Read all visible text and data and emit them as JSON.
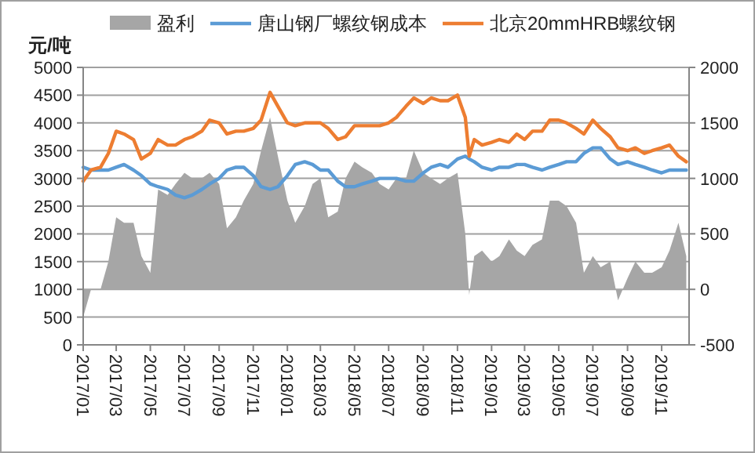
{
  "chart_data": {
    "type": "line",
    "ylabel": "元/吨",
    "legend": "top",
    "grid": "y",
    "xlim": [
      "2017-01-01",
      "2019-12-20"
    ],
    "xticks": [
      {
        "value": "2017-01",
        "label": "2017/01"
      },
      {
        "value": "2017-03",
        "label": "2017/03"
      },
      {
        "value": "2017-05",
        "label": "2017/05"
      },
      {
        "value": "2017-07",
        "label": "2017/07"
      },
      {
        "value": "2017-09",
        "label": "2017/09"
      },
      {
        "value": "2017-11",
        "label": "2017/11"
      },
      {
        "value": "2018-01",
        "label": "2018/01"
      },
      {
        "value": "2018-03",
        "label": "2018/03"
      },
      {
        "value": "2018-05",
        "label": "2018/05"
      },
      {
        "value": "2018-07",
        "label": "2018/07"
      },
      {
        "value": "2018-09",
        "label": "2018/09"
      },
      {
        "value": "2018-11",
        "label": "2018/11"
      },
      {
        "value": "2019-01",
        "label": "2019/01"
      },
      {
        "value": "2019-03",
        "label": "2019/03"
      },
      {
        "value": "2019-05",
        "label": "2019/05"
      },
      {
        "value": "2019-07",
        "label": "2019/07"
      },
      {
        "value": "2019-09",
        "label": "2019/09"
      },
      {
        "value": "2019-11",
        "label": "2019/11"
      }
    ],
    "ylim": [
      0,
      5000
    ],
    "yticks": [
      0,
      500,
      1000,
      1500,
      2000,
      2500,
      3000,
      3500,
      4000,
      4500,
      5000
    ],
    "y2lim": [
      -500,
      2000
    ],
    "y2ticks": [
      -500,
      0,
      500,
      1000,
      1500,
      2000
    ],
    "x": [
      "2017-01-01",
      "2017-01-15",
      "2017-02-01",
      "2017-02-15",
      "2017-03-01",
      "2017-03-15",
      "2017-04-01",
      "2017-04-15",
      "2017-05-01",
      "2017-05-15",
      "2017-06-01",
      "2017-06-15",
      "2017-07-01",
      "2017-07-15",
      "2017-08-01",
      "2017-08-15",
      "2017-09-01",
      "2017-09-15",
      "2017-10-01",
      "2017-10-15",
      "2017-11-01",
      "2017-11-15",
      "2017-12-01",
      "2017-12-15",
      "2018-01-01",
      "2018-01-15",
      "2018-02-01",
      "2018-02-15",
      "2018-03-01",
      "2018-03-15",
      "2018-04-01",
      "2018-04-15",
      "2018-05-01",
      "2018-05-15",
      "2018-06-01",
      "2018-06-15",
      "2018-07-01",
      "2018-07-15",
      "2018-08-01",
      "2018-08-15",
      "2018-09-01",
      "2018-09-15",
      "2018-10-01",
      "2018-10-15",
      "2018-11-01",
      "2018-11-15",
      "2018-11-22",
      "2018-12-01",
      "2018-12-15",
      "2019-01-01",
      "2019-01-15",
      "2019-02-01",
      "2019-02-15",
      "2019-03-01",
      "2019-03-15",
      "2019-04-01",
      "2019-04-15",
      "2019-05-01",
      "2019-05-15",
      "2019-06-01",
      "2019-06-15",
      "2019-07-01",
      "2019-07-15",
      "2019-08-01",
      "2019-08-15",
      "2019-09-01",
      "2019-09-15",
      "2019-10-01",
      "2019-10-15",
      "2019-11-01",
      "2019-11-15",
      "2019-12-01",
      "2019-12-15"
    ],
    "series": [
      {
        "name": "盈利",
        "type": "area",
        "axis": "y2",
        "color": "#a6a6a6",
        "values": [
          -250,
          0,
          0,
          250,
          650,
          600,
          600,
          300,
          150,
          900,
          850,
          950,
          1050,
          1000,
          1000,
          1050,
          950,
          550,
          650,
          800,
          950,
          1250,
          1550,
          1200,
          800,
          600,
          750,
          950,
          1000,
          650,
          700,
          1000,
          1150,
          1100,
          1050,
          950,
          900,
          1000,
          1000,
          1250,
          1050,
          1000,
          950,
          1000,
          1050,
          500,
          -50,
          300,
          350,
          250,
          300,
          450,
          350,
          300,
          400,
          450,
          800,
          800,
          750,
          600,
          150,
          300,
          200,
          250,
          -100,
          100,
          250,
          150,
          150,
          200,
          350,
          600,
          300
        ]
      },
      {
        "name": "唐山钢厂螺纹钢成本",
        "color": "#5b9bd5",
        "values": [
          3200,
          3150,
          3150,
          3150,
          3200,
          3250,
          3150,
          3050,
          2900,
          2850,
          2800,
          2700,
          2650,
          2700,
          2800,
          2900,
          3000,
          3150,
          3200,
          3200,
          3050,
          2850,
          2800,
          2850,
          3050,
          3250,
          3300,
          3250,
          3150,
          3150,
          2950,
          2850,
          2850,
          2900,
          2950,
          3000,
          3000,
          3000,
          2950,
          2950,
          3100,
          3200,
          3250,
          3200,
          3350,
          3400,
          3350,
          3300,
          3200,
          3150,
          3200,
          3200,
          3250,
          3250,
          3200,
          3150,
          3200,
          3250,
          3300,
          3300,
          3450,
          3550,
          3550,
          3350,
          3250,
          3300,
          3250,
          3200,
          3150,
          3100,
          3150,
          3150,
          3150
        ]
      },
      {
        "name": "北京20mmHRB螺纹钢",
        "color": "#ed7d31",
        "values": [
          2950,
          3150,
          3200,
          3450,
          3850,
          3800,
          3700,
          3350,
          3450,
          3700,
          3600,
          3600,
          3700,
          3750,
          3850,
          4050,
          4000,
          3800,
          3850,
          3850,
          3900,
          4050,
          4550,
          4300,
          4000,
          3950,
          4000,
          4000,
          4000,
          3900,
          3700,
          3750,
          3950,
          3950,
          3950,
          3950,
          4000,
          4100,
          4300,
          4450,
          4350,
          4450,
          4400,
          4400,
          4500,
          4100,
          3400,
          3700,
          3600,
          3650,
          3700,
          3650,
          3800,
          3700,
          3850,
          3850,
          4050,
          4050,
          4000,
          3900,
          3800,
          4050,
          3900,
          3750,
          3550,
          3500,
          3550,
          3450,
          3500,
          3550,
          3600,
          3400,
          3300
        ]
      }
    ]
  }
}
